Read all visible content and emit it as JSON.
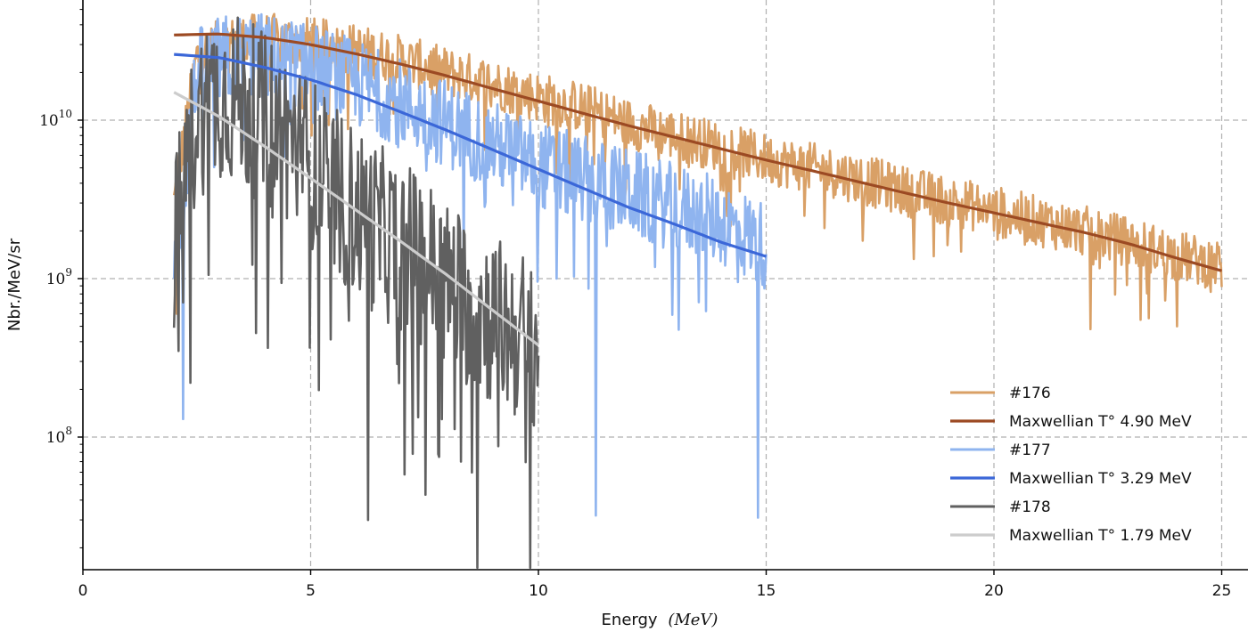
{
  "chart_data": {
    "type": "line",
    "xlabel": "Energy",
    "xlabel_unit": "(MeV)",
    "ylabel": "Nbr./MeV/sr",
    "xlim": [
      0,
      25.5
    ],
    "ylim": [
      15000000.0,
      50000000000.0
    ],
    "yscale": "log",
    "grid": true,
    "legend_position": "lower-right",
    "x_ticks": [
      0,
      5,
      10,
      15,
      20,
      25
    ],
    "y_ticks": [
      {
        "value": 100000000.0,
        "base": "10",
        "exp": "8"
      },
      {
        "value": 1000000000.0,
        "base": "10",
        "exp": "9"
      },
      {
        "value": 10000000000.0,
        "base": "10",
        "exp": "10"
      }
    ],
    "series": [
      {
        "name": "#176",
        "kind": "measured",
        "color": "#d9a066",
        "x": [
          2.0,
          2.5,
          3.0,
          3.5,
          4.0,
          5.0,
          6.0,
          7.0,
          8.0,
          9.0,
          10.0,
          11.0,
          12.0,
          13.0,
          14.0,
          15.0,
          16.0,
          17.0,
          18.0,
          19.0,
          20.0,
          21.0,
          22.0,
          23.0,
          24.0,
          25.0
        ],
        "y": [
          3000000000.0,
          25000000000.0,
          30000000000.0,
          32000000000.0,
          33000000000.0,
          31000000000.0,
          28000000000.0,
          24000000000.0,
          20000000000.0,
          17000000000.0,
          14000000000.0,
          12000000000.0,
          9500000000.0,
          8000000000.0,
          6800000000.0,
          5700000000.0,
          5000000000.0,
          4300000000.0,
          3600000000.0,
          3100000000.0,
          2700000000.0,
          2300000000.0,
          2000000000.0,
          1700000000.0,
          1400000000.0,
          1200000000.0
        ],
        "dips": [
          [
            2.05,
            600000000.0
          ],
          [
            5.0,
            8000000000.0
          ],
          [
            10.2,
            9000000000.0
          ],
          [
            22.1,
            480000000.0
          ],
          [
            23.2,
            550000000.0
          ],
          [
            24.0,
            500000000.0
          ],
          [
            25.0,
            400000000.0
          ]
        ]
      },
      {
        "name": "Maxwellian T° 4.90 MeV",
        "kind": "fit",
        "color": "#9c4a23",
        "x": [
          2,
          3,
          4,
          5,
          6,
          7,
          8,
          9,
          10,
          11,
          12,
          13,
          14,
          15,
          16,
          17,
          18,
          19,
          20,
          21,
          22,
          23,
          24,
          25
        ],
        "y": [
          34500000000.0,
          35000000000.0,
          33200000000.0,
          30000000000.0,
          26200000000.0,
          22500000000.0,
          19000000000.0,
          15800000000.0,
          13200000000.0,
          11000000000.0,
          9200000000.0,
          7800000000.0,
          6600000000.0,
          5600000000.0,
          4800000000.0,
          4100000000.0,
          3500000000.0,
          3000000000.0,
          2600000000.0,
          2250000000.0,
          1950000000.0,
          1650000000.0,
          1350000000.0,
          1120000000.0
        ]
      },
      {
        "name": "#177",
        "kind": "measured",
        "color": "#8fb4ef",
        "x": [
          2.0,
          2.5,
          3.0,
          3.5,
          4.0,
          5.0,
          6.0,
          7.0,
          8.0,
          9.0,
          10.0,
          11.0,
          12.0,
          13.0,
          14.0,
          15.0
        ],
        "y": [
          1000000000.0,
          20000000000.0,
          24000000000.0,
          26000000000.0,
          25000000000.0,
          22000000000.0,
          17000000000.0,
          13000000000.0,
          9500000000.0,
          7000000000.0,
          5200000000.0,
          4200000000.0,
          3500000000.0,
          2800000000.0,
          2300000000.0,
          1600000000.0
        ],
        "dips": [
          [
            2.2,
            130000000.0
          ],
          [
            11.25,
            32000000.0
          ],
          [
            14.8,
            31000000.0
          ],
          [
            15.0,
            500000000.0
          ]
        ]
      },
      {
        "name": "Maxwellian T° 3.29 MeV",
        "kind": "fit",
        "color": "#3b67d8",
        "x": [
          2,
          3,
          4,
          5,
          6,
          7,
          8,
          9,
          10,
          11,
          12,
          13,
          14,
          15
        ],
        "y": [
          26000000000.0,
          24800000000.0,
          21500000000.0,
          18000000000.0,
          14500000000.0,
          11200000000.0,
          8600000000.0,
          6500000000.0,
          4900000000.0,
          3700000000.0,
          2800000000.0,
          2200000000.0,
          1700000000.0,
          1380000000.0
        ]
      },
      {
        "name": "#178",
        "kind": "measured",
        "color": "#606060",
        "x": [
          2.0,
          2.5,
          3.0,
          3.5,
          4.0,
          4.5,
          5.0,
          5.5,
          6.0,
          6.5,
          7.0,
          7.5,
          8.0,
          8.5,
          9.0,
          9.5,
          10.0
        ],
        "y": [
          1600000000.0,
          11000000000.0,
          15000000000.0,
          13000000000.0,
          10000000000.0,
          8000000000.0,
          5500000000.0,
          3500000000.0,
          2600000000.0,
          2000000000.0,
          1600000000.0,
          1300000000.0,
          900000000.0,
          700000000.0,
          550000000.0,
          450000000.0,
          400000000.0
        ],
        "dips": [
          [
            2.1,
            350000000.0
          ],
          [
            2.35,
            220000000.0
          ],
          [
            6.25,
            30000000.0
          ],
          [
            8.65,
            15000000.0
          ],
          [
            9.8,
            15000000.0
          ],
          [
            10.0,
            60000000.0
          ]
        ]
      },
      {
        "name": "Maxwellian T° 1.79 MeV",
        "kind": "fit",
        "color": "#cccccc",
        "x": [
          2,
          3,
          4,
          5,
          6,
          7,
          8,
          9,
          10
        ],
        "y": [
          15000000000.0,
          10500000000.0,
          6800000000.0,
          4300000000.0,
          2700000000.0,
          1700000000.0,
          1050000000.0,
          630000000.0,
          380000000.0
        ]
      }
    ]
  }
}
